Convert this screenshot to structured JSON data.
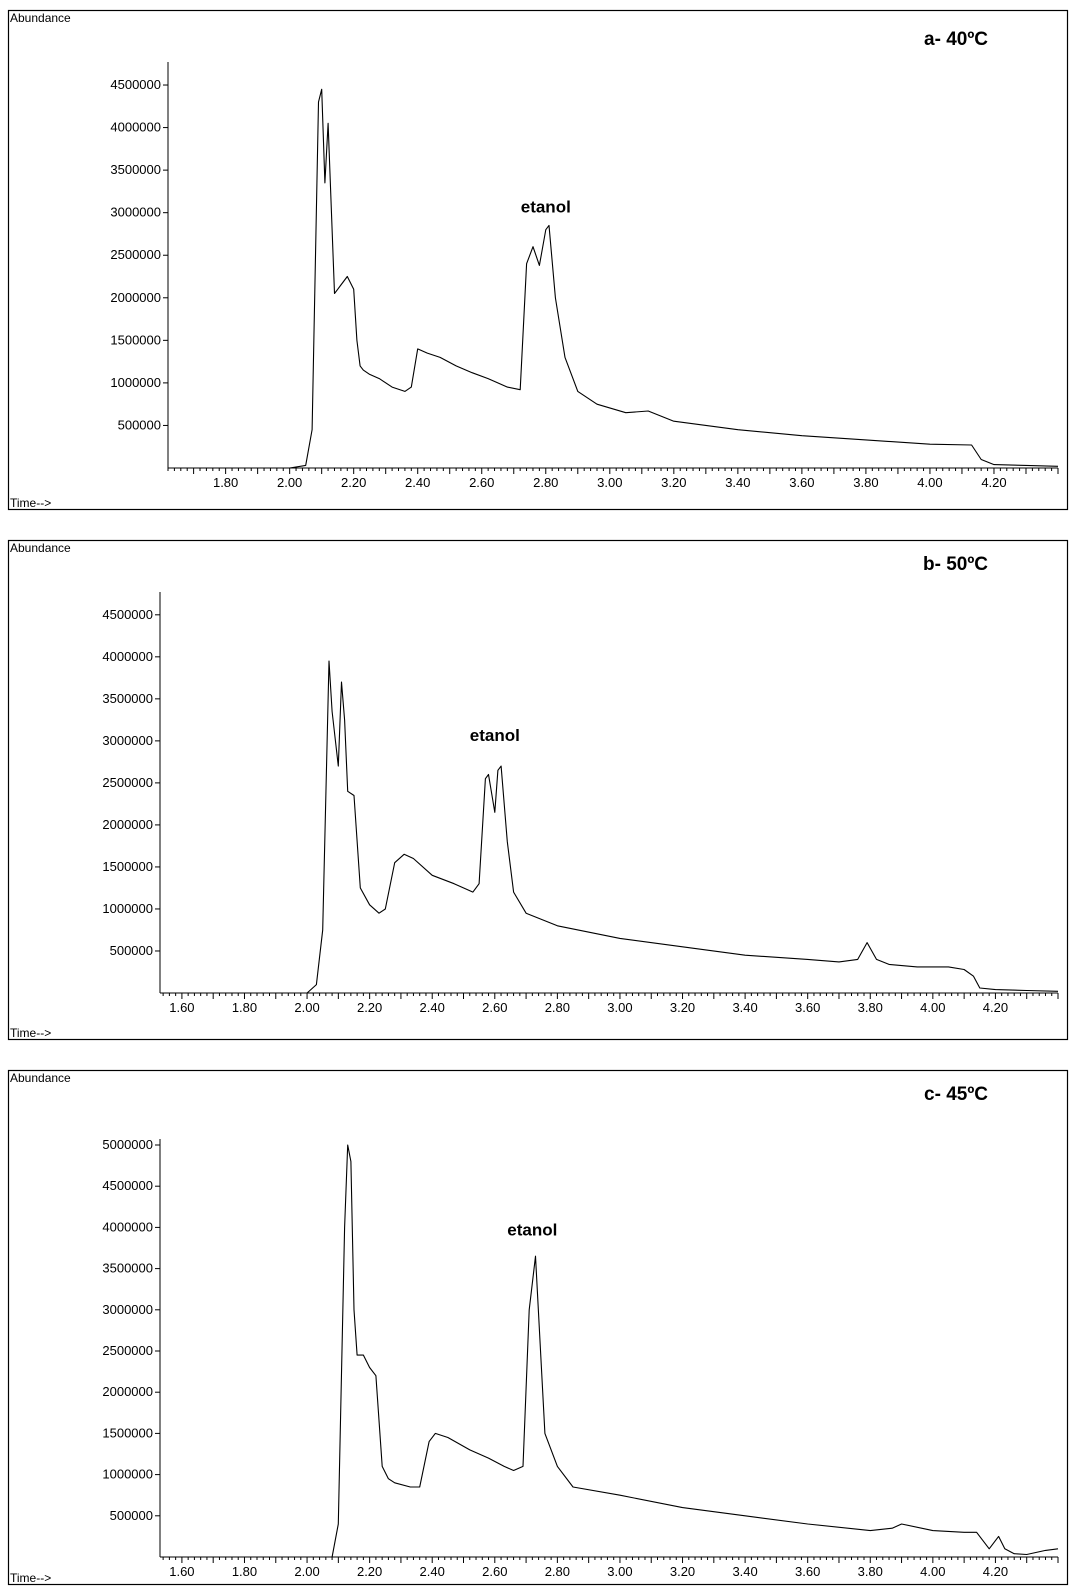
{
  "chart_data": [
    {
      "type": "line",
      "title": "a- 40ºC",
      "ylabel": "Abundance",
      "xlabel": "Time-->",
      "xlim": [
        1.62,
        4.4
      ],
      "ylim": [
        0,
        4700000
      ],
      "xticks": [
        "1.80",
        "2.00",
        "2.20",
        "2.40",
        "2.60",
        "2.80",
        "3.00",
        "3.20",
        "3.40",
        "3.60",
        "3.80",
        "4.00",
        "4.20"
      ],
      "yticks": [
        "500000",
        "1000000",
        "1500000",
        "2000000",
        "2500000",
        "3000000",
        "3500000",
        "4000000",
        "4500000"
      ],
      "annotations": [
        {
          "text": "etanol",
          "x": 2.8,
          "y": 3000000
        }
      ],
      "series": [
        {
          "x": [
            1.62,
            2.0,
            2.05,
            2.07,
            2.09,
            2.1,
            2.11,
            2.12,
            2.14,
            2.15,
            2.16,
            2.18,
            2.2,
            2.21,
            2.22,
            2.23,
            2.25,
            2.28,
            2.32,
            2.36,
            2.38,
            2.4,
            2.43,
            2.47,
            2.52,
            2.57,
            2.62,
            2.68,
            2.72,
            2.74,
            2.76,
            2.78,
            2.8,
            2.81,
            2.83,
            2.86,
            2.9,
            2.96,
            3.05,
            3.12,
            3.2,
            3.4,
            3.6,
            3.8,
            4.0,
            4.13,
            4.16,
            4.2,
            4.3,
            4.4
          ],
          "values": [
            0,
            0,
            30000,
            450000,
            4300000,
            4450000,
            3350000,
            4050000,
            2050000,
            2100000,
            2150000,
            2250000,
            2100000,
            1500000,
            1200000,
            1150000,
            1100000,
            1050000,
            950000,
            900000,
            950000,
            1400000,
            1350000,
            1300000,
            1200000,
            1120000,
            1050000,
            950000,
            920000,
            2400000,
            2600000,
            2380000,
            2800000,
            2850000,
            2000000,
            1300000,
            900000,
            750000,
            650000,
            670000,
            550000,
            450000,
            380000,
            330000,
            280000,
            270000,
            100000,
            40000,
            30000,
            20000
          ]
        }
      ]
    },
    {
      "type": "line",
      "title": "b- 50ºC",
      "ylabel": "Abundance",
      "xlabel": "Time-->",
      "xlim": [
        1.53,
        4.4
      ],
      "ylim": [
        0,
        4700000
      ],
      "xticks": [
        "1.60",
        "1.80",
        "2.00",
        "2.20",
        "2.40",
        "2.60",
        "2.80",
        "3.00",
        "3.20",
        "3.40",
        "3.60",
        "3.80",
        "4.00",
        "4.20"
      ],
      "yticks": [
        "500000",
        "1000000",
        "1500000",
        "2000000",
        "2500000",
        "3000000",
        "3500000",
        "4000000",
        "4500000"
      ],
      "annotations": [
        {
          "text": "etanol",
          "x": 2.6,
          "y": 3000000
        }
      ],
      "series": [
        {
          "x": [
            1.53,
            2.0,
            2.03,
            2.05,
            2.07,
            2.08,
            2.1,
            2.11,
            2.12,
            2.13,
            2.15,
            2.17,
            2.2,
            2.23,
            2.25,
            2.28,
            2.31,
            2.34,
            2.4,
            2.47,
            2.53,
            2.55,
            2.57,
            2.58,
            2.6,
            2.61,
            2.62,
            2.64,
            2.66,
            2.7,
            2.8,
            3.0,
            3.2,
            3.4,
            3.6,
            3.7,
            3.76,
            3.79,
            3.82,
            3.86,
            3.95,
            4.05,
            4.1,
            4.13,
            4.15,
            4.2,
            4.3,
            4.4
          ],
          "values": [
            0,
            0,
            100000,
            750000,
            3950000,
            3350000,
            2700000,
            3700000,
            3250000,
            2400000,
            2350000,
            1250000,
            1050000,
            950000,
            1000000,
            1550000,
            1650000,
            1600000,
            1400000,
            1300000,
            1200000,
            1300000,
            2550000,
            2600000,
            2150000,
            2650000,
            2700000,
            1800000,
            1200000,
            950000,
            800000,
            650000,
            550000,
            450000,
            400000,
            370000,
            400000,
            600000,
            400000,
            340000,
            310000,
            310000,
            280000,
            200000,
            60000,
            40000,
            30000,
            20000
          ]
        }
      ]
    },
    {
      "type": "line",
      "title": "c- 45ºC",
      "ylabel": "Abundance",
      "xlabel": "Time-->",
      "xlim": [
        1.53,
        4.4
      ],
      "ylim": [
        0,
        5000000
      ],
      "xticks": [
        "1.60",
        "1.80",
        "2.00",
        "2.20",
        "2.40",
        "2.60",
        "2.80",
        "3.00",
        "3.20",
        "3.40",
        "3.60",
        "3.80",
        "4.00",
        "4.20"
      ],
      "yticks": [
        "500000",
        "1000000",
        "1500000",
        "2000000",
        "2500000",
        "3000000",
        "3500000",
        "4000000",
        "4500000",
        "5000000"
      ],
      "annotations": [
        {
          "text": "etanol",
          "x": 2.72,
          "y": 3900000
        }
      ],
      "series": [
        {
          "x": [
            1.53,
            2.08,
            2.1,
            2.12,
            2.13,
            2.14,
            2.15,
            2.16,
            2.18,
            2.2,
            2.22,
            2.24,
            2.26,
            2.28,
            2.33,
            2.36,
            2.39,
            2.41,
            2.45,
            2.52,
            2.58,
            2.63,
            2.66,
            2.69,
            2.71,
            2.73,
            2.76,
            2.8,
            2.85,
            3.0,
            3.2,
            3.4,
            3.6,
            3.8,
            3.87,
            3.9,
            4.0,
            4.1,
            4.14,
            4.18,
            4.21,
            4.23,
            4.26,
            4.3,
            4.36,
            4.4
          ],
          "values": [
            0,
            0,
            400000,
            4000000,
            5000000,
            4800000,
            3000000,
            2450000,
            2450000,
            2300000,
            2200000,
            1100000,
            950000,
            900000,
            850000,
            850000,
            1400000,
            1500000,
            1450000,
            1300000,
            1200000,
            1100000,
            1050000,
            1100000,
            3000000,
            3650000,
            1500000,
            1100000,
            850000,
            750000,
            600000,
            500000,
            400000,
            320000,
            350000,
            400000,
            320000,
            300000,
            300000,
            100000,
            250000,
            100000,
            40000,
            30000,
            80000,
            100000
          ]
        }
      ]
    }
  ]
}
